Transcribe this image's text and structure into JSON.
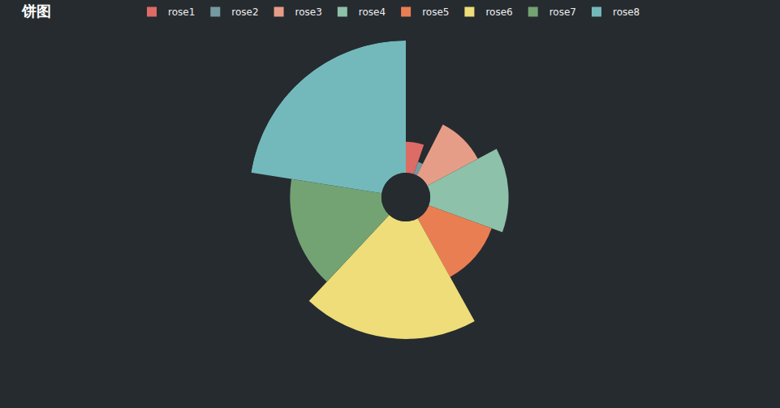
{
  "chart_data": {
    "type": "pie",
    "title": "饼图",
    "categories": [
      "rose1",
      "rose2",
      "rose3",
      "rose4",
      "rose5",
      "rose6",
      "rose7",
      "rose8"
    ],
    "values": [
      19,
      8,
      35,
      48,
      41,
      72,
      56,
      81
    ],
    "colors": [
      "#dd6b66",
      "#759aa0",
      "#e69d87",
      "#8dc1a9",
      "#ea7e53",
      "#eedd78",
      "#73a373",
      "#73b9bc"
    ],
    "legend": "top",
    "tick_labels": false
  }
}
